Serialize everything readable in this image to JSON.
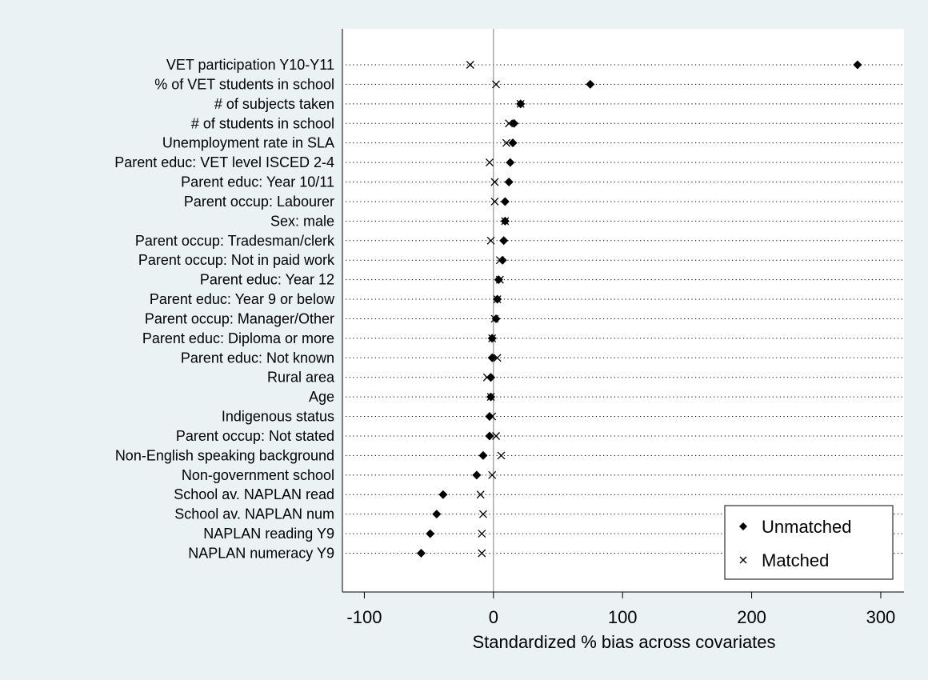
{
  "chart_data": {
    "type": "scatter",
    "title": "",
    "xlabel": "Standardized % bias across covariates",
    "ylabel": "",
    "xlim": [
      -117,
      318
    ],
    "xticks": [
      -100,
      0,
      100,
      200,
      300
    ],
    "xtick_labels": [
      "-100",
      "0",
      "100",
      "200",
      "300"
    ],
    "grid": "dotted horizontal lines per covariate",
    "reference_line": 0,
    "legend_position": "bottom-right",
    "categories": [
      "VET participation Y10-Y11",
      "% of VET students in school",
      "# of subjects taken",
      "# of students in school",
      "Unemployment rate in SLA",
      "Parent educ: VET level ISCED 2-4",
      "Parent educ: Year 10/11",
      "Parent occup: Labourer",
      "Sex: male",
      "Parent occup: Tradesman/clerk",
      "Parent occup: Not in paid work",
      "Parent educ: Year 12",
      "Parent educ: Year 9 or below",
      "Parent occup: Manager/Other",
      "Parent educ: Diploma or more",
      "Parent educ: Not known",
      "Rural area",
      "Age",
      "Indigenous status",
      "Parent occup: Not stated",
      "Non-English speaking background",
      "Non-government school",
      "School av. NAPLAN read",
      "School av. NAPLAN num",
      "NAPLAN reading Y9",
      "NAPLAN numeracy Y9"
    ],
    "series": [
      {
        "name": "Unmatched",
        "marker": "diamond",
        "values": [
          282,
          75,
          21,
          16,
          15,
          13,
          12,
          9,
          9,
          8,
          7,
          4,
          3,
          2,
          -1,
          -1,
          -2,
          -2,
          -3,
          -3,
          -8,
          -13,
          -39,
          -44,
          -49,
          -56
        ]
      },
      {
        "name": "Matched",
        "marker": "x",
        "values": [
          -18,
          2,
          21,
          12,
          10,
          -3,
          1,
          1,
          9,
          -2,
          5,
          5,
          3,
          1,
          -1,
          3,
          -5,
          -2,
          -1,
          2,
          6,
          -1,
          -10,
          -8,
          -9,
          -9
        ]
      }
    ],
    "colors": {
      "background": "#eaf2f3",
      "plot_area": "#ffffff",
      "ink": "#000000"
    }
  }
}
